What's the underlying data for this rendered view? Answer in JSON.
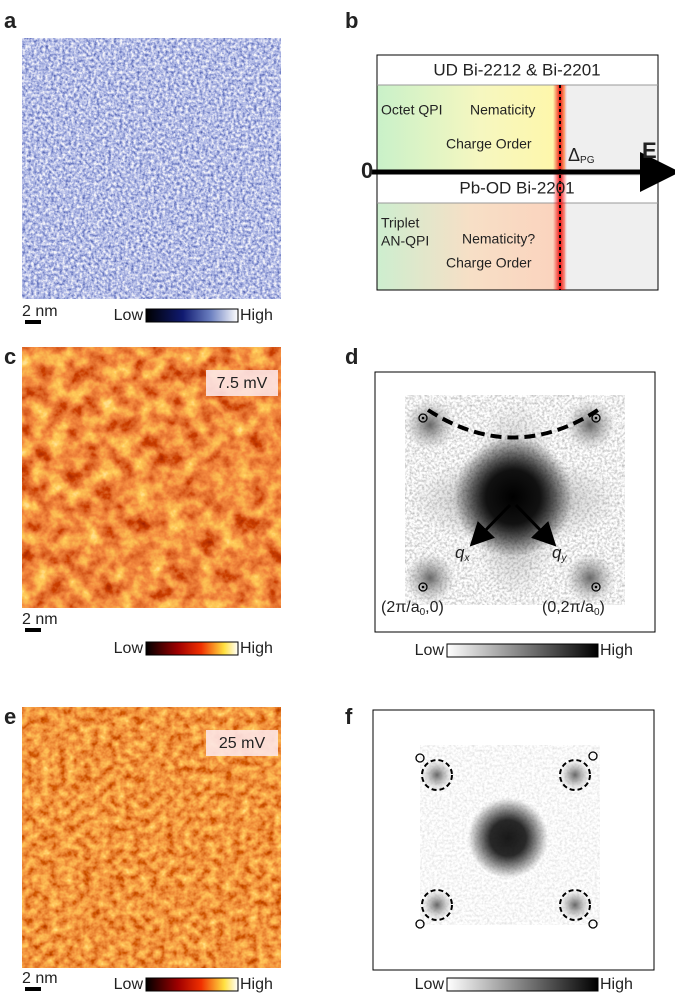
{
  "panels": {
    "a": {
      "label": "a",
      "scale_bar": "2 nm",
      "colorbar": {
        "low": "Low",
        "high": "High"
      }
    },
    "b": {
      "label": "b",
      "top_header": "UD Bi-2212 & Bi-2201",
      "top_labels": [
        "Octet QPI",
        "Nematicity",
        "Charge Order"
      ],
      "gap": {
        "symbol": "Δ",
        "subscript": "PG"
      },
      "axis_label": "E",
      "origin": "0",
      "bottom_header": "Pb-OD Bi-2201",
      "bottom_labels": [
        "Triplet",
        "AN-QPI",
        "Nematicity?",
        "Charge Order"
      ]
    },
    "c": {
      "label": "c",
      "energy": "7.5 mV",
      "scale_bar": "2 nm",
      "colorbar": {
        "low": "Low",
        "high": "High"
      }
    },
    "d": {
      "label": "d",
      "qx": {
        "symbol": "q",
        "subscript": "x"
      },
      "qy": {
        "symbol": "q",
        "subscript": "y"
      },
      "bragg_left": {
        "prefix": "(2π/a",
        "subscript": "0",
        "suffix": ",0)"
      },
      "bragg_right": {
        "prefix": "(0,2π/a",
        "subscript": "0",
        "suffix": ")"
      },
      "colorbar": {
        "low": "Low",
        "high": "High"
      }
    },
    "e": {
      "label": "e",
      "energy": "25 mV",
      "scale_bar": "2 nm",
      "colorbar": {
        "low": "Low",
        "high": "High"
      }
    },
    "f": {
      "label": "f",
      "colorbar": {
        "low": "Low",
        "high": "High"
      }
    }
  }
}
